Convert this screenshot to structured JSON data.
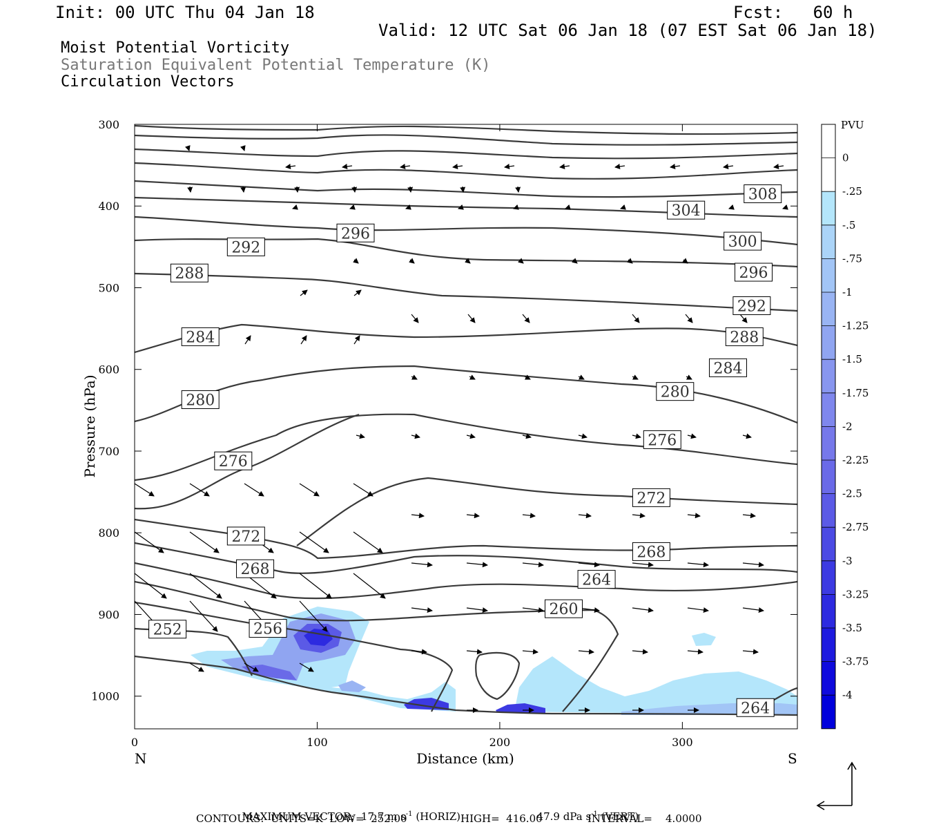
{
  "header": {
    "init": "Init: 00 UTC Thu 04 Jan 18",
    "fcst": "Fcst:   60 h",
    "valid": "Valid: 12 UTC Sat 06 Jan 18 (07 EST Sat 06 Jan 18)"
  },
  "titles": {
    "line1": "Moist Potential Vorticity",
    "line2": "Saturation Equivalent Potential Temperature (K)",
    "line3": "Circulation Vectors"
  },
  "colors": {
    "contour": "#3a3a3a",
    "title_gray": "#777777"
  },
  "chart_data": {
    "type": "cross-section",
    "xlabel": "Distance (km)",
    "ylabel": "Pressure (hPa)",
    "xlim": [
      0,
      363
    ],
    "ylim": [
      1040,
      300
    ],
    "x_ticks": [
      0,
      100,
      200,
      300
    ],
    "y_ticks": [
      300,
      400,
      500,
      600,
      700,
      800,
      900,
      1000
    ],
    "x_end_left": "N",
    "x_end_right": "S",
    "colorbar": {
      "unit": "PVU",
      "labels": [
        "0",
        "-.25",
        "-.5",
        "-.75",
        "-1",
        "-1.25",
        "-1.5",
        "-1.75",
        "-2",
        "-2.25",
        "-2.5",
        "-2.75",
        "-3",
        "-3.25",
        "-3.5",
        "-3.75",
        "-4"
      ],
      "colors": [
        "#ffffff",
        "#ffffff",
        "#b4e6fb",
        "#abd4f8",
        "#a2c5f6",
        "#99b4f3",
        "#90a5f1",
        "#8896ef",
        "#7f87ed",
        "#7678ea",
        "#6a6ae8",
        "#5b5ae6",
        "#4b4ae4",
        "#3c3ae2",
        "#2d2ae0",
        "#1e1adf",
        "#0f0add",
        "#0000dc"
      ]
    },
    "contour_labels": [
      {
        "text": "308",
        "x": 344,
        "p": 385
      },
      {
        "text": "304",
        "x": 302,
        "p": 405
      },
      {
        "text": "300",
        "x": 333,
        "p": 443
      },
      {
        "text": "296",
        "x": 121,
        "p": 433
      },
      {
        "text": "296",
        "x": 339,
        "p": 481
      },
      {
        "text": "292",
        "x": 61,
        "p": 450
      },
      {
        "text": "292",
        "x": 338,
        "p": 522
      },
      {
        "text": "288",
        "x": 30,
        "p": 482
      },
      {
        "text": "288",
        "x": 334,
        "p": 560
      },
      {
        "text": "284",
        "x": 36,
        "p": 560
      },
      {
        "text": "284",
        "x": 325,
        "p": 598
      },
      {
        "text": "280",
        "x": 36,
        "p": 637
      },
      {
        "text": "280",
        "x": 296,
        "p": 627
      },
      {
        "text": "276",
        "x": 54,
        "p": 712
      },
      {
        "text": "276",
        "x": 289,
        "p": 686
      },
      {
        "text": "272",
        "x": 61,
        "p": 804
      },
      {
        "text": "272",
        "x": 283,
        "p": 757
      },
      {
        "text": "268",
        "x": 66,
        "p": 844
      },
      {
        "text": "268",
        "x": 283,
        "p": 823
      },
      {
        "text": "264",
        "x": 253,
        "p": 857
      },
      {
        "text": "264",
        "x": 340,
        "p": 1014
      },
      {
        "text": "260",
        "x": 235,
        "p": 893
      },
      {
        "text": "256",
        "x": 73,
        "p": 917
      },
      {
        "text": "252",
        "x": 18,
        "p": 918
      }
    ],
    "vector_note": {
      "max_vector_line": "MAXIMUM VECTOR:  17.7 m s",
      "horiz": "(HORIZ)",
      "vert_value": "47.9 dPa s",
      "vert": "(VERT)",
      "exp": "-1"
    },
    "contour_note": {
      "label": "CONTOURS:  UNITS=K  LOW=  252.00",
      "high": "HIGH=  416.00",
      "interval": "INTERVAL=    4.0000"
    }
  }
}
